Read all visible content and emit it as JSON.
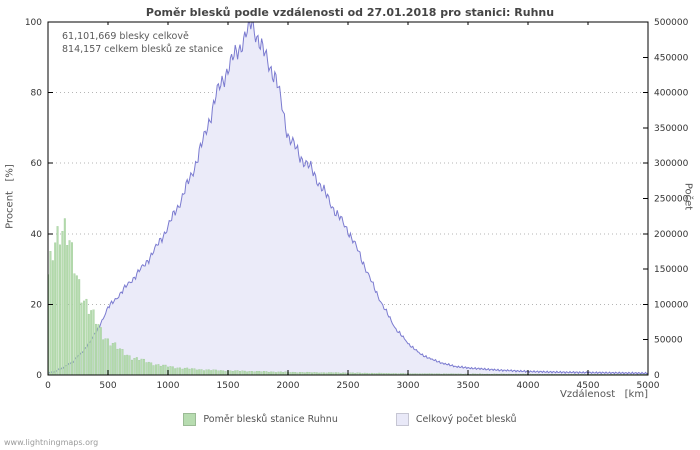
{
  "title": "Poměr blesků podle vzdálenosti od 27.01.2018 pro stanici: Ruhnu",
  "annotations": {
    "total_all": "61,101,669 blesky celkově",
    "total_station": "814,157 celkem blesků ze stanice"
  },
  "axes": {
    "left_label": "Procent   [%]",
    "right_label": "Počet",
    "x_label": "Vzdálenost   [km]",
    "x_ticks": [
      0,
      500,
      1000,
      1500,
      2000,
      2500,
      3000,
      3500,
      4000,
      4500,
      5000
    ],
    "left_ticks": [
      0,
      20,
      40,
      60,
      80,
      100
    ],
    "right_ticks": [
      0,
      50000,
      100000,
      150000,
      200000,
      250000,
      300000,
      350000,
      400000,
      450000,
      500000
    ]
  },
  "legend": {
    "items": [
      {
        "label": "Poměr blesků stanice Ruhnu",
        "color": "#b7dcb0"
      },
      {
        "label": "Celkový počet blesků",
        "color": "#e9e9f8"
      }
    ]
  },
  "footer": "www.lightningmaps.org",
  "colors": {
    "bar_fill": "#b7dcb0",
    "bar_stroke": "#92c48c",
    "area_fill": "#ebebf9",
    "area_line": "#7b7bd0",
    "grid": "#b5b5b5",
    "frame": "#000000"
  },
  "chart_data": {
    "type": "area",
    "title": "Poměr blesků podle vzdálenosti od 27.01.2018 pro stanici: Ruhnu",
    "xlabel": "Vzdálenost [km]",
    "x_range": [
      0,
      5000
    ],
    "left_axis": {
      "label": "Procent [%]",
      "range": [
        0,
        100
      ]
    },
    "right_axis": {
      "label": "Počet",
      "range": [
        0,
        500000
      ]
    },
    "grid": "horizontal-dotted",
    "legend_position": "bottom",
    "series": [
      {
        "name": "Poměr blesků stanice Ruhnu",
        "type": "bar",
        "axis": "left",
        "color": "#b7dcb0",
        "x": [
          0,
          50,
          100,
          150,
          200,
          250,
          300,
          350,
          400,
          450,
          500,
          550,
          600,
          650,
          700,
          750,
          800,
          850,
          900,
          950,
          1000,
          1100,
          1200,
          1300,
          1400,
          1500,
          1750,
          2000,
          2250,
          2500,
          2750,
          3000,
          3500,
          4000,
          4500,
          5000
        ],
        "values": [
          27,
          38,
          43,
          40,
          33,
          27,
          22,
          18,
          15,
          12,
          10,
          8.5,
          7,
          6,
          5,
          4.5,
          4,
          3.5,
          3,
          2.7,
          2.4,
          2,
          1.7,
          1.5,
          1.3,
          1.2,
          1,
          0.8,
          0.7,
          0.6,
          0.5,
          0.4,
          0.3,
          0.25,
          0.2,
          0.2
        ]
      },
      {
        "name": "Celkový počet blesků",
        "type": "area",
        "axis": "right",
        "color": "#ebebf9",
        "line_color": "#7b7bd0",
        "x": [
          0,
          100,
          200,
          300,
          400,
          500,
          600,
          700,
          800,
          900,
          1000,
          1100,
          1200,
          1300,
          1400,
          1500,
          1600,
          1700,
          1800,
          1900,
          2000,
          2100,
          2200,
          2300,
          2400,
          2500,
          2600,
          2700,
          2800,
          2900,
          3000,
          3100,
          3200,
          3300,
          3400,
          3500,
          3750,
          4000,
          4250,
          4500,
          4750,
          5000
        ],
        "values": [
          2000,
          8000,
          18000,
          35000,
          60000,
          95000,
          115000,
          135000,
          155000,
          180000,
          210000,
          245000,
          285000,
          335000,
          395000,
          435000,
          465000,
          500000,
          455000,
          420000,
          340000,
          310000,
          290000,
          260000,
          230000,
          205000,
          170000,
          130000,
          95000,
          65000,
          45000,
          30000,
          22000,
          16000,
          12000,
          10000,
          7000,
          5000,
          4000,
          3500,
          3000,
          2500
        ]
      }
    ]
  }
}
